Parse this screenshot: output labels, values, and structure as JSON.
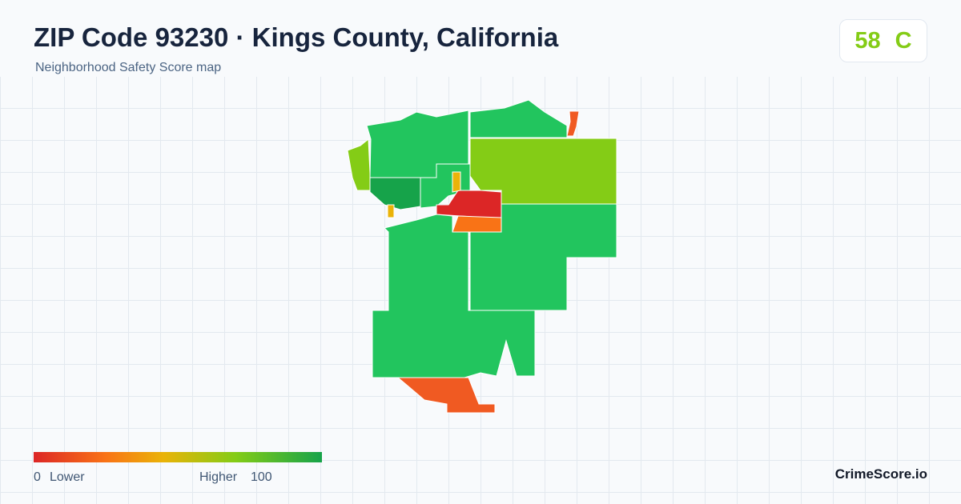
{
  "header": {
    "title": "ZIP Code 93230 · Kings County, California",
    "subtitle": "Neighborhood Safety Score map"
  },
  "score": {
    "value": 58,
    "grade": "C"
  },
  "legend": {
    "min": 0,
    "min_label": "Lower",
    "max_label": "Higher",
    "max": 100
  },
  "brand": "CrimeScore.io"
}
